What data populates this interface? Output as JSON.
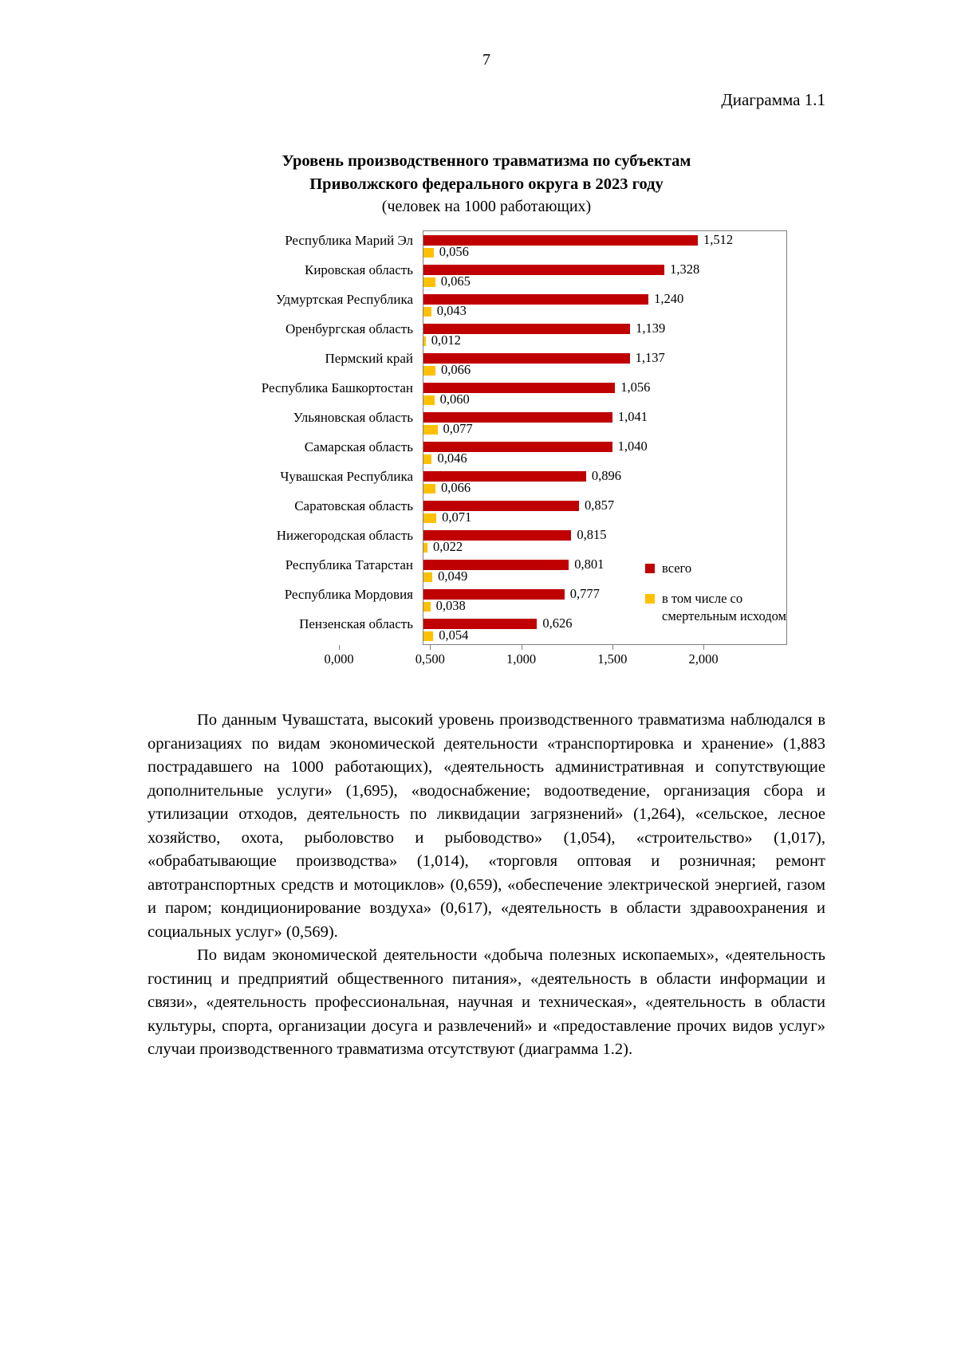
{
  "page": {
    "number": "7",
    "figure_label": "Диаграмма 1.1"
  },
  "chart": {
    "title_line1": "Уровень производственного травматизма по субъектам",
    "title_line2": "Приволжского федерального округа в 2023 году",
    "subtitle": "(человек на 1000 работающих)",
    "legend": {
      "total": "всего",
      "fatal": "в том числе со смертельным исходом"
    }
  },
  "chart_data": {
    "type": "bar",
    "orientation": "horizontal",
    "title": "Уровень производственного травматизма по субъектам Приволжского федерального округа в 2023 году",
    "subtitle": "(человек на 1000 работающих)",
    "categories": [
      "Республика Марий Эл",
      "Кировская область",
      "Удмуртская Республика",
      "Оренбургская область",
      "Пермский край",
      "Республика Башкортостан",
      "Ульяновская область",
      "Самарская область",
      "Чувашская Республика",
      "Саратовская область",
      "Нижегородская область",
      "Республика Татарстан",
      "Республика Мордовия",
      "Пензенская область"
    ],
    "series": [
      {
        "name": "всего",
        "color": "#C00000",
        "values": [
          1.512,
          1.328,
          1.24,
          1.139,
          1.137,
          1.056,
          1.041,
          1.04,
          0.896,
          0.857,
          0.815,
          0.801,
          0.777,
          0.626
        ],
        "labels": [
          "1,512",
          "1,328",
          "1,240",
          "1,139",
          "1,137",
          "1,056",
          "1,041",
          "1,040",
          "0,896",
          "0,857",
          "0,815",
          "0,801",
          "0,777",
          "0,626"
        ]
      },
      {
        "name": "в том числе со смертельным исходом",
        "color": "#FFC000",
        "values": [
          0.056,
          0.065,
          0.043,
          0.012,
          0.066,
          0.06,
          0.077,
          0.046,
          0.066,
          0.071,
          0.022,
          0.049,
          0.038,
          0.054
        ],
        "labels": [
          "0,056",
          "0,065",
          "0,043",
          "0,012",
          "0,066",
          "0,060",
          "0,077",
          "0,046",
          "0,066",
          "0,071",
          "0,022",
          "0,049",
          "0,038",
          "0,054"
        ]
      }
    ],
    "xlim": [
      0,
      2
    ],
    "x_ticks": [
      "0,000",
      "0,500",
      "1,000",
      "1,500",
      "2,000"
    ],
    "grid": false,
    "legend_position": "inside-right"
  },
  "body": {
    "paragraph1": "По данным Чувашстата, высокий уровень производственного травматизма наблюдался в организациях по видам экономической деятельности «транспортировка и хранение» (1,883 пострадавшего на 1000 работающих), «деятельность административная и сопутствующие дополнительные услуги» (1,695), «водоснабжение; водоотведение, организация сбора и утилизации отходов, деятельность по ликвидации загрязнений» (1,264), «сельское, лесное хозяйство, охота, рыболовство и рыбоводство» (1,054), «строительство» (1,017), «обрабатывающие производства» (1,014), «торговля оптовая и розничная; ремонт автотранспортных средств и мотоциклов» (0,659), «обеспечение электрической энергией, газом и паром; кондиционирование воздуха» (0,617),  «деятельность в области здравоохранения и социальных услуг» (0,569).",
    "paragraph2": "По видам экономической деятельности «добыча полезных ископаемых», «деятельность гостиниц и предприятий общественного питания», «деятельность в области информации и связи», «деятельность профессиональная, научная и техническая», «деятельность в области культуры, спорта, организации досуга и развлечений» и «предоставление прочих видов услуг» случаи производственного травматизма отсутствуют (диаграмма 1.2)."
  }
}
